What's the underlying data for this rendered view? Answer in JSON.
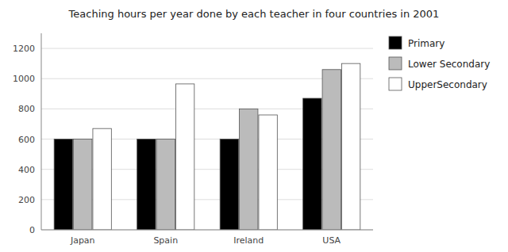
{
  "chart_data": {
    "type": "bar",
    "title": "Teaching hours per year done by each teacher in four countries in 2001",
    "categories": [
      "Japan",
      "Spain",
      "Ireland",
      "USA"
    ],
    "series": [
      {
        "name": "Primary",
        "color": "#000000",
        "values": [
          600,
          600,
          600,
          870
        ]
      },
      {
        "name": "Lower Secondary",
        "color": "#bbbbbb",
        "values": [
          600,
          600,
          800,
          1060
        ]
      },
      {
        "name": "UpperSecondary",
        "color": "#ffffff",
        "values": [
          670,
          965,
          760,
          1100
        ]
      }
    ],
    "ylim": [
      0,
      1300
    ],
    "yticks": [
      0,
      200,
      400,
      600,
      800,
      1000,
      1200
    ],
    "grid": true,
    "legend": "right"
  }
}
